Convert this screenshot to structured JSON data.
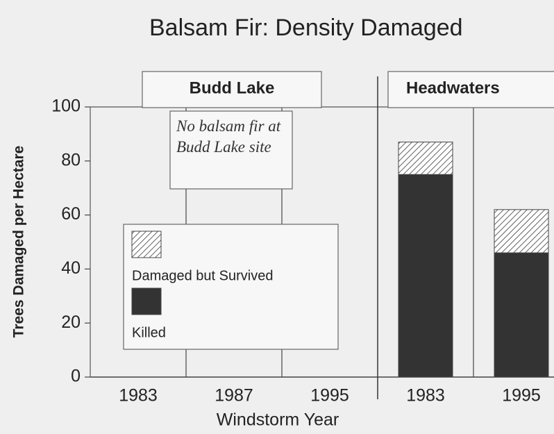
{
  "chart_data": {
    "type": "bar",
    "stacked": true,
    "title": "Balsam Fir: Density Damaged",
    "xlabel": "Windstorm Year",
    "ylabel": "Trees Damaged per Hectare",
    "panels": [
      {
        "title": "Budd Lake",
        "span": 3
      },
      {
        "title": "Headwaters",
        "span": 2
      }
    ],
    "annotation": "No balsam fir at Budd Lake site",
    "categories": [
      "1983",
      "1987",
      "1995",
      "1983",
      "1995"
    ],
    "series": [
      {
        "name": "Killed",
        "color": "#333333",
        "values": [
          null,
          null,
          null,
          75,
          46
        ]
      },
      {
        "name": "Damaged but Survived",
        "color": "#ffffff",
        "hatch": true,
        "values": [
          null,
          null,
          null,
          12,
          16
        ]
      }
    ],
    "ylim": [
      0,
      100
    ],
    "yticks": [
      0,
      20,
      40,
      60,
      80,
      100
    ]
  }
}
